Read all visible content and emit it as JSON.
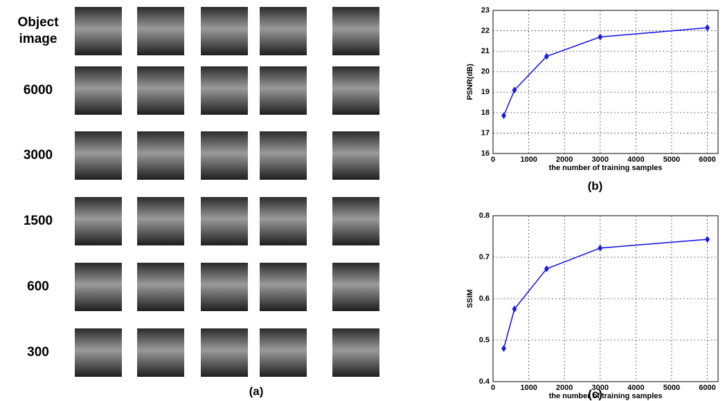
{
  "panel_a": {
    "row_labels": [
      "Object image",
      "6000",
      "3000",
      "1500",
      "600",
      "300"
    ],
    "caption": "(a)"
  },
  "chart_data": [
    {
      "type": "line",
      "x": [
        300,
        600,
        1500,
        3000,
        6000
      ],
      "values": [
        17.85,
        19.1,
        20.75,
        21.7,
        22.15
      ],
      "color": "#1a1ae6",
      "xlim": [
        0,
        6300
      ],
      "xticks": [
        0,
        1000,
        2000,
        3000,
        4000,
        5000,
        6000
      ],
      "ylim": [
        16,
        23
      ],
      "yticks": [
        16,
        17,
        18,
        19,
        20,
        21,
        22,
        23
      ],
      "xlabel": "the number of training samples",
      "ylabel": "PSNR(dB)",
      "caption": "(b)",
      "grid": true
    },
    {
      "type": "line",
      "x": [
        300,
        600,
        1500,
        3000,
        6000
      ],
      "values": [
        0.48,
        0.575,
        0.672,
        0.722,
        0.743
      ],
      "color": "#1a1ae6",
      "xlim": [
        0,
        6300
      ],
      "xticks": [
        0,
        1000,
        2000,
        3000,
        4000,
        5000,
        6000
      ],
      "ylim": [
        0.4,
        0.8
      ],
      "yticks": [
        0.4,
        0.5,
        0.6,
        0.7,
        0.8
      ],
      "xlabel": "the number of training samples",
      "ylabel": "SSIM",
      "caption": "(c)",
      "grid": true
    }
  ]
}
